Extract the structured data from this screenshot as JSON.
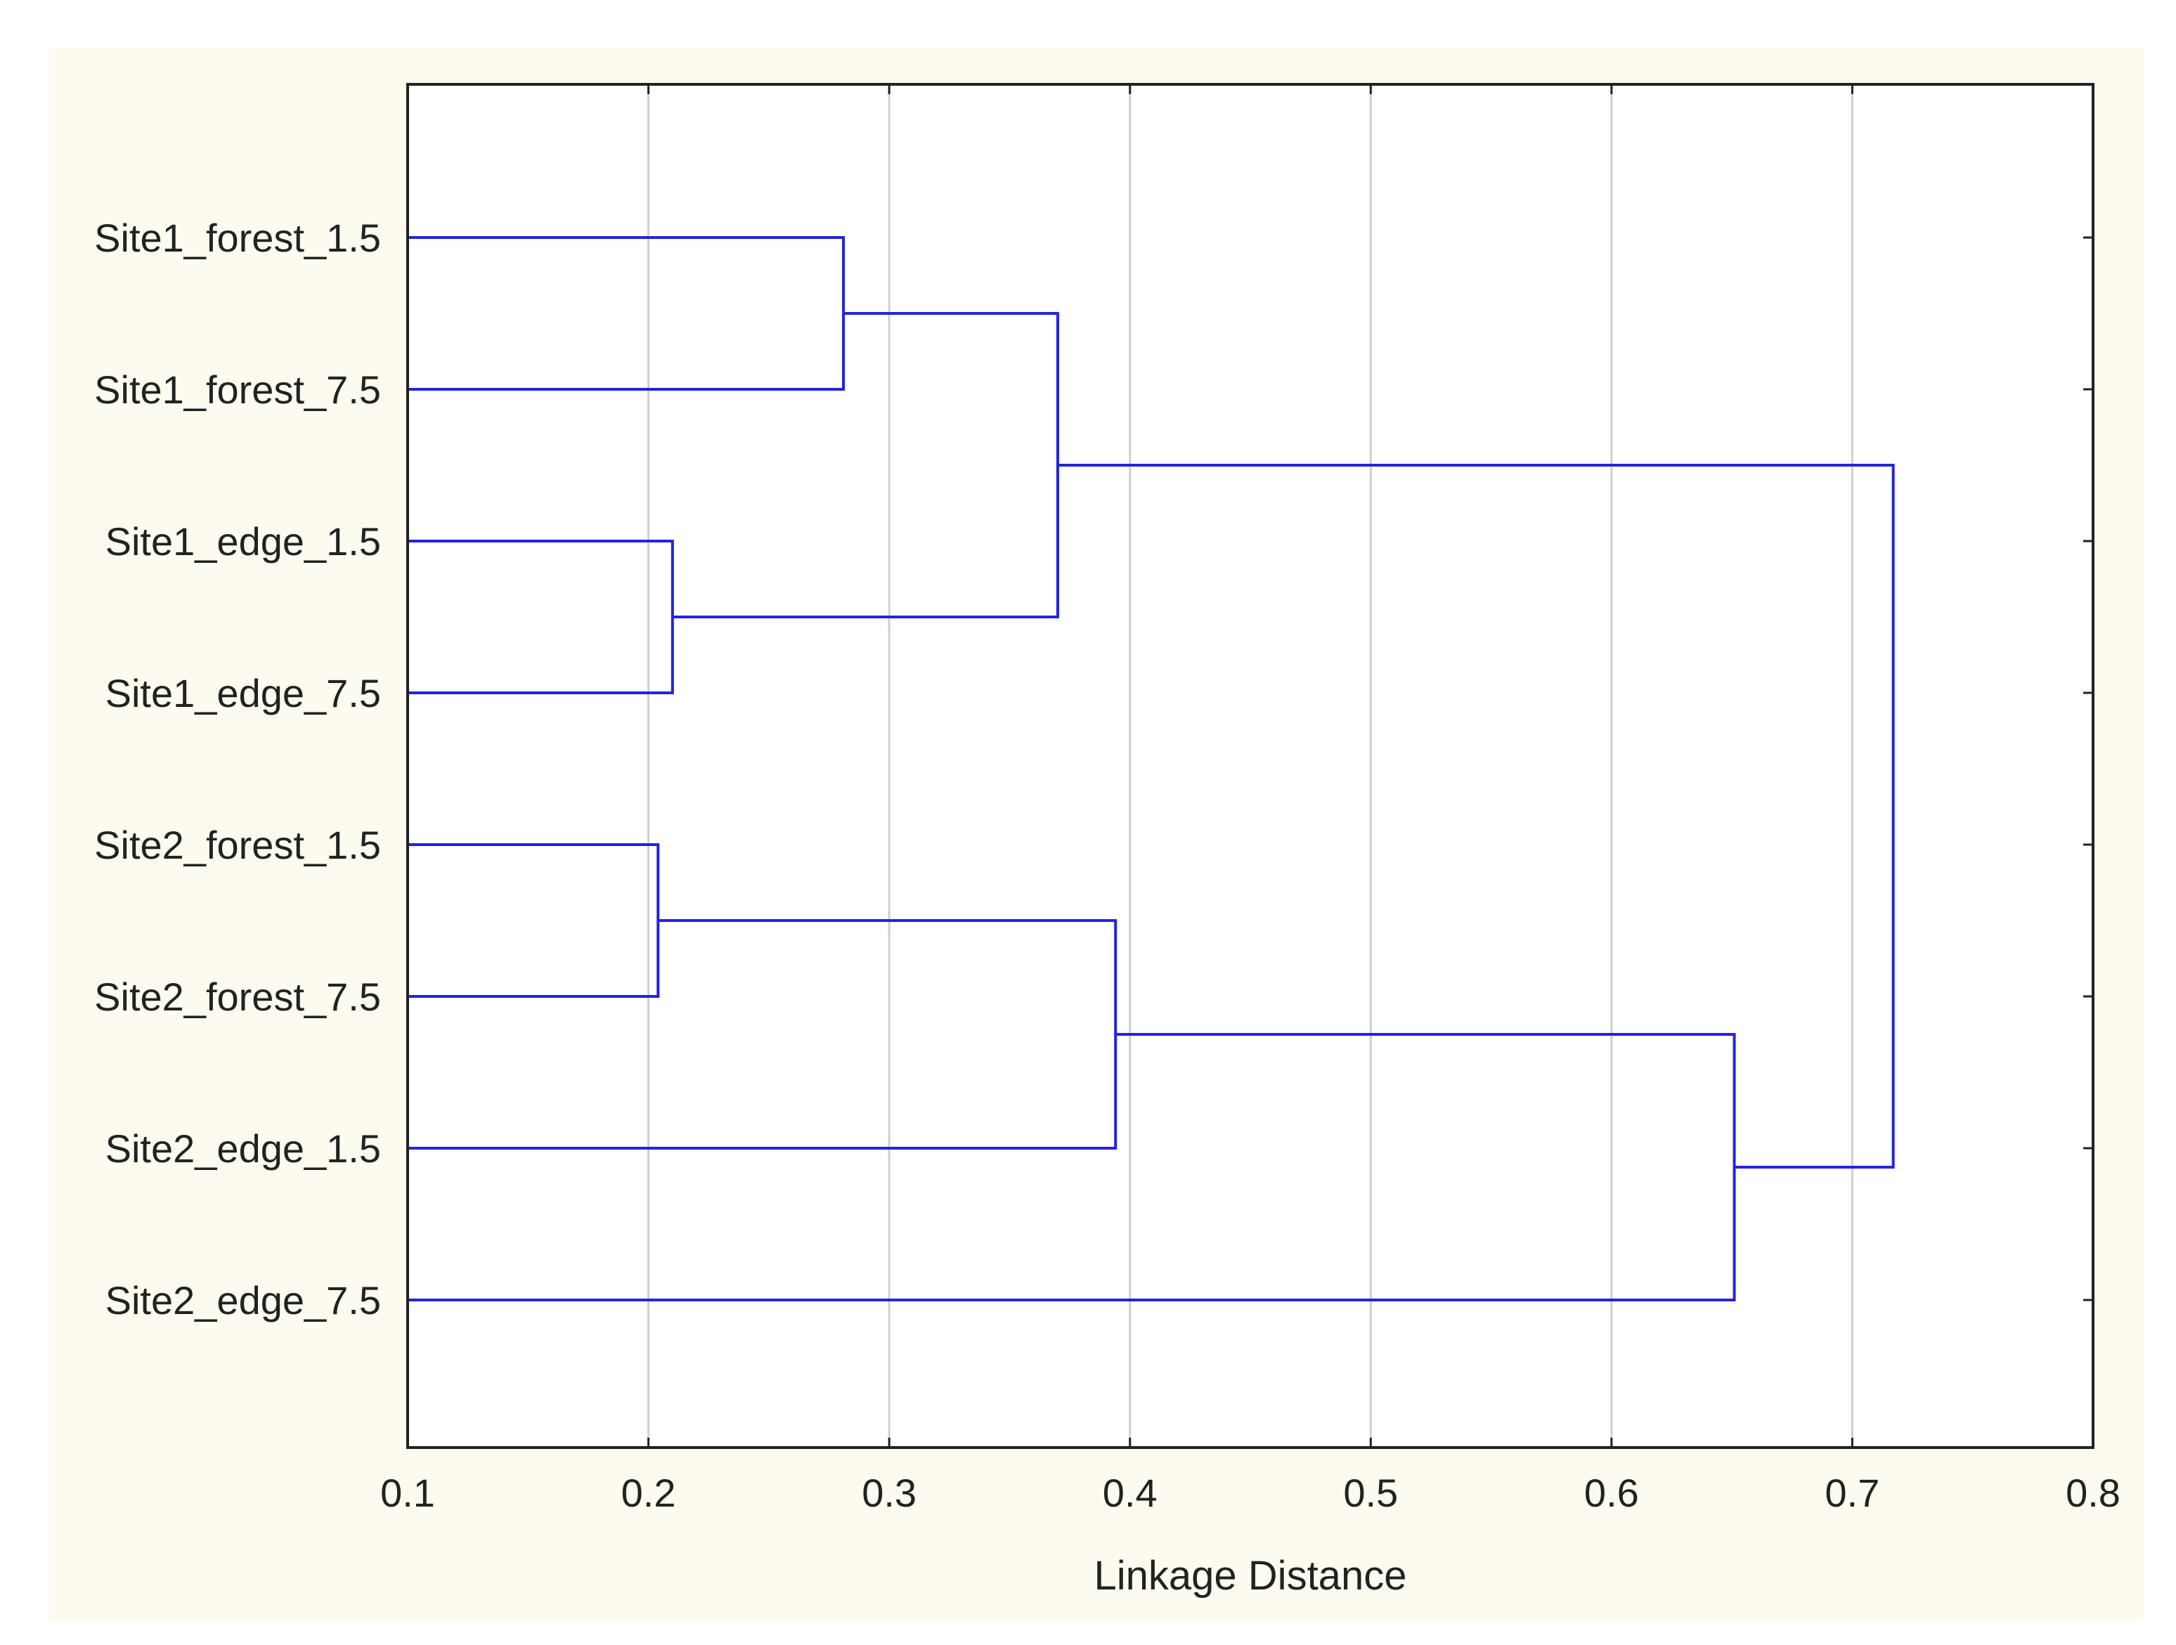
{
  "chart_data": {
    "type": "dendrogram",
    "title": "",
    "xlabel": "Linkage Distance",
    "ylabel": "",
    "xlim": [
      0.1,
      0.8
    ],
    "xticks": [
      0.1,
      0.2,
      0.3,
      0.4,
      0.5,
      0.6,
      0.7,
      0.8
    ],
    "xtick_labels": [
      "0.1",
      "0.2",
      "0.3",
      "0.4",
      "0.5",
      "0.6",
      "0.7",
      "0.8"
    ],
    "grid": "vertical",
    "leaves": [
      "Site1_forest_1.5",
      "Site1_forest_7.5",
      "Site1_edge_1.5",
      "Site1_edge_7.5",
      "Site2_forest_1.5",
      "Site2_forest_7.5",
      "Site2_edge_1.5",
      "Site2_edge_7.5"
    ],
    "merges": [
      {
        "left": "leaf:2",
        "right": "leaf:3",
        "distance": 0.21
      },
      {
        "left": "leaf:4",
        "right": "leaf:5",
        "distance": 0.204
      },
      {
        "left": "leaf:0",
        "right": "leaf:1",
        "distance": 0.281
      },
      {
        "left": "node:2",
        "right": "node:0",
        "distance": 0.37
      },
      {
        "left": "node:1",
        "right": "leaf:6",
        "distance": 0.394
      },
      {
        "left": "node:4",
        "right": "leaf:7",
        "distance": 0.651
      },
      {
        "left": "node:3",
        "right": "node:5",
        "distance": 0.717
      }
    ],
    "colors": {
      "line": "#2323e0",
      "background": "#fdfaf0",
      "plot_background": "#ffffff",
      "grid": "#cfcfcf",
      "frame": "#222222"
    }
  }
}
